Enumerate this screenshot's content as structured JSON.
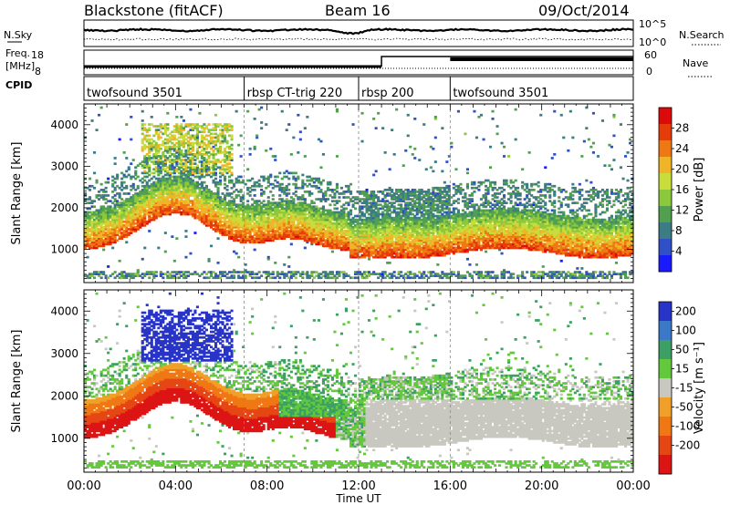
{
  "header": {
    "station": "Blackstone (fitACF)",
    "beam": "Beam 16",
    "date": "09/Oct/2014"
  },
  "aux_panels": {
    "nsky_label": "N.Sky",
    "nsearch_label": "N.Search",
    "freq_label_line1": "Freq.",
    "freq_label_line2": "[MHz]",
    "nave_label": "Nave",
    "cpid_label": "CPID",
    "noise_ticks": [
      "10^5",
      "10^0"
    ],
    "freq_ticks": [
      "18",
      "8"
    ],
    "nave_ticks": [
      "60",
      "0"
    ]
  },
  "cpid_segments": [
    {
      "label": "twofsound 3501",
      "start_hour": 0
    },
    {
      "label": "rbsp CT-trig 220",
      "start_hour": 7
    },
    {
      "label": "rbsp 200",
      "start_hour": 12
    },
    {
      "label": "twofsound 3501",
      "start_hour": 16
    }
  ],
  "chart_data": [
    {
      "type": "heatmap",
      "quantity": "Power",
      "ylabel": "Slant Range [km]",
      "yticks": [
        1000,
        2000,
        3000,
        4000
      ],
      "ylim": [
        200,
        4500
      ],
      "colorbar_label": "Power [dB]",
      "colorbar_ticks": [
        4,
        8,
        12,
        16,
        20,
        24,
        28
      ],
      "colorbar_range": [
        0,
        32
      ]
    },
    {
      "type": "heatmap",
      "quantity": "Velocity",
      "ylabel": "Slant Range [km]",
      "yticks": [
        1000,
        2000,
        3000,
        4000
      ],
      "ylim": [
        200,
        4500
      ],
      "colorbar_label": "Velocity [m s⁻¹]",
      "colorbar_ticks": [
        200,
        100,
        50,
        15,
        -15,
        -50,
        -100,
        -200
      ]
    }
  ],
  "xaxis": {
    "label": "Time UT",
    "ticks": [
      "00:00",
      "04:00",
      "08:00",
      "12:00",
      "16:00",
      "20:00",
      "00:00"
    ],
    "xlim_hours": [
      0,
      24
    ]
  },
  "colors": {
    "power_scale": [
      "#1a1aff",
      "#3050c8",
      "#3c7c84",
      "#50a050",
      "#8cc83c",
      "#c8dc3c",
      "#f0b428",
      "#f07814",
      "#e63c0a",
      "#dc0a0a"
    ],
    "velocity_scale": [
      "#2834c8",
      "#3c78c8",
      "#3ca064",
      "#64c83c",
      "#c8c8c0",
      "#f0a028",
      "#f07814",
      "#e64614",
      "#dc1414"
    ]
  }
}
